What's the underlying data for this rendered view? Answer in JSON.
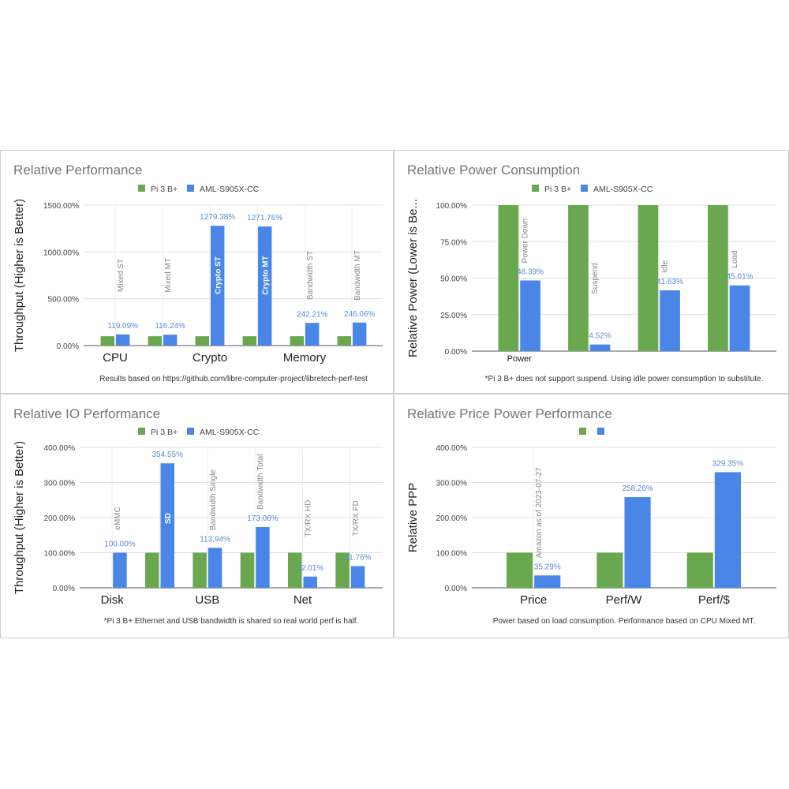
{
  "colors": {
    "pi": "#6aa84f",
    "aml": "#4a86e8",
    "value_label": "#5b8bd6",
    "grid": "#e0e0e0"
  },
  "chart_data": [
    {
      "type": "bar",
      "title": "Relative Performance",
      "ylabel": "Throughput (Higher is Better)",
      "ylim": [
        0,
        1500
      ],
      "yticks": [
        0,
        500,
        1000,
        1500
      ],
      "ytick_labels": [
        "0.00%",
        "500.00%",
        "1000.00%",
        "1500.00%"
      ],
      "categories": [
        "CPU",
        "",
        "Crypto",
        "",
        "Memory",
        ""
      ],
      "annotations": [
        "Mixed ST",
        "Mixed MT",
        "Crypto ST",
        "Crypto MT",
        "Bandwidth ST",
        "Bandwidth MT"
      ],
      "series": [
        {
          "name": "Pi 3 B+",
          "values": [
            100,
            100,
            100,
            100,
            100,
            100
          ]
        },
        {
          "name": "AML-S905X-CC",
          "values": [
            119.09,
            116.24,
            1279.38,
            1271.76,
            242.21,
            246.06
          ],
          "labels": [
            "119.09%",
            "116.24%",
            "1279.38%",
            "1271.76%",
            "242.21%",
            "246.06%"
          ]
        }
      ],
      "legend": "top",
      "grid": true,
      "note": "Results based on https://github.com/libre-computer-project/libretech-perf-test"
    },
    {
      "type": "bar",
      "title": "Relative Power Consumption",
      "ylabel": "Relative Power (Lower is Be...",
      "ylim": [
        0,
        100
      ],
      "yticks": [
        0,
        25,
        50,
        75,
        100
      ],
      "ytick_labels": [
        "0.00%",
        "25.00%",
        "50.00%",
        "75.00%",
        "100.00%"
      ],
      "categories": [
        "Power",
        "",
        "",
        ""
      ],
      "annotations": [
        "Power Down",
        "Suspend",
        "Idle",
        "Load"
      ],
      "series": [
        {
          "name": "Pi 3 B+",
          "values": [
            100,
            100,
            100,
            100
          ]
        },
        {
          "name": "AML-S905X-CC",
          "values": [
            48.39,
            4.52,
            41.63,
            45.01
          ],
          "labels": [
            "48.39%",
            "4.52%",
            "41.63%",
            "45.01%"
          ]
        }
      ],
      "legend": "top",
      "grid": true,
      "note": "*Pi 3 B+ does not support suspend. Using idle power consumption to substitute."
    },
    {
      "type": "bar",
      "title": "Relative IO Performance",
      "ylabel": "Throughput (Higher is Better)",
      "ylim": [
        0,
        400
      ],
      "yticks": [
        0,
        100,
        200,
        300,
        400
      ],
      "ytick_labels": [
        "0.00%",
        "100.00%",
        "200.00%",
        "300.00%",
        "400.00%"
      ],
      "categories": [
        "Disk",
        "",
        "USB",
        "",
        "Net",
        ""
      ],
      "annotations": [
        "eMMC",
        "SD",
        "Bandwidth Single",
        "Bandwidth Total",
        "TX/RX HD",
        "TX/RX FD"
      ],
      "series": [
        {
          "name": "Pi 3 B+",
          "values": [
            null,
            100,
            100,
            100,
            100,
            100
          ]
        },
        {
          "name": "AML-S905X-CC",
          "values": [
            100,
            354.55,
            113.94,
            173.06,
            32.01,
            61.76
          ],
          "labels": [
            "100.00%",
            "354.55%",
            "113.94%",
            "173.06%",
            "32.01%",
            "61.76%"
          ]
        }
      ],
      "legend": "top",
      "grid": true,
      "note": "*Pi 3 B+ Ethernet and USB bandwidth is shared so real world perf is half."
    },
    {
      "type": "bar",
      "title": "Relative Price Power Performance",
      "ylabel": "Relative PPP",
      "ylim": [
        0,
        400
      ],
      "yticks": [
        0,
        100,
        200,
        300,
        400
      ],
      "ytick_labels": [
        "0.00%",
        "100.00%",
        "200.00%",
        "300.00%",
        "400.00%"
      ],
      "categories": [
        "Price",
        "Perf/W",
        "Perf/$"
      ],
      "annotations": [
        "Amazon as of 2023-07-27",
        "",
        ""
      ],
      "series": [
        {
          "values": [
            100,
            100,
            100
          ]
        },
        {
          "values": [
            35.29,
            258.26,
            329.35
          ],
          "labels": [
            "35.29%",
            "258.26%",
            "329.35%"
          ]
        }
      ],
      "legend": "top",
      "grid": true,
      "note": "Power based on load consumption. Performance based on CPU Mixed MT."
    }
  ]
}
